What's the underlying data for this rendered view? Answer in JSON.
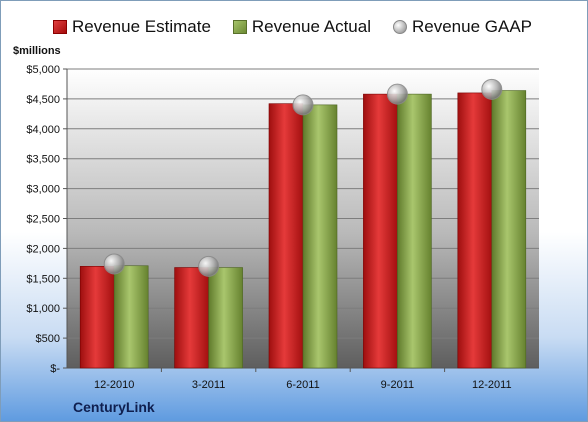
{
  "chart_data": {
    "type": "bar",
    "categories": [
      "12-2010",
      "3-2011",
      "6-2011",
      "9-2011",
      "12-2011"
    ],
    "series": [
      {
        "name": "Revenue Estimate",
        "kind": "bar",
        "color": "#c81e1e",
        "values": [
          1700,
          1680,
          4420,
          4580,
          4600
        ]
      },
      {
        "name": "Revenue Actual",
        "kind": "bar",
        "color": "#8aa84e",
        "values": [
          1710,
          1680,
          4400,
          4580,
          4640
        ]
      },
      {
        "name": "Revenue GAAP",
        "kind": "marker",
        "color": "#b0b0b0",
        "values": [
          1740,
          1700,
          4400,
          4580,
          4660
        ]
      }
    ],
    "ylabel": "$millions",
    "ylim": [
      0,
      5000
    ],
    "yticks": [
      0,
      500,
      1000,
      1500,
      2000,
      2500,
      3000,
      3500,
      4000,
      4500,
      5000
    ],
    "ytick_labels": [
      "$-",
      "$500",
      "$1,000",
      "$1,500",
      "$2,000",
      "$2,500",
      "$3,000",
      "$3,500",
      "$4,000",
      "$4,500",
      "$5,000"
    ],
    "grid": true,
    "legend": "top"
  },
  "legend": {
    "estimate": "Revenue Estimate",
    "actual": "Revenue Actual",
    "gaap": "Revenue GAAP"
  },
  "unit_label": "$millions",
  "company": "CenturyLink"
}
